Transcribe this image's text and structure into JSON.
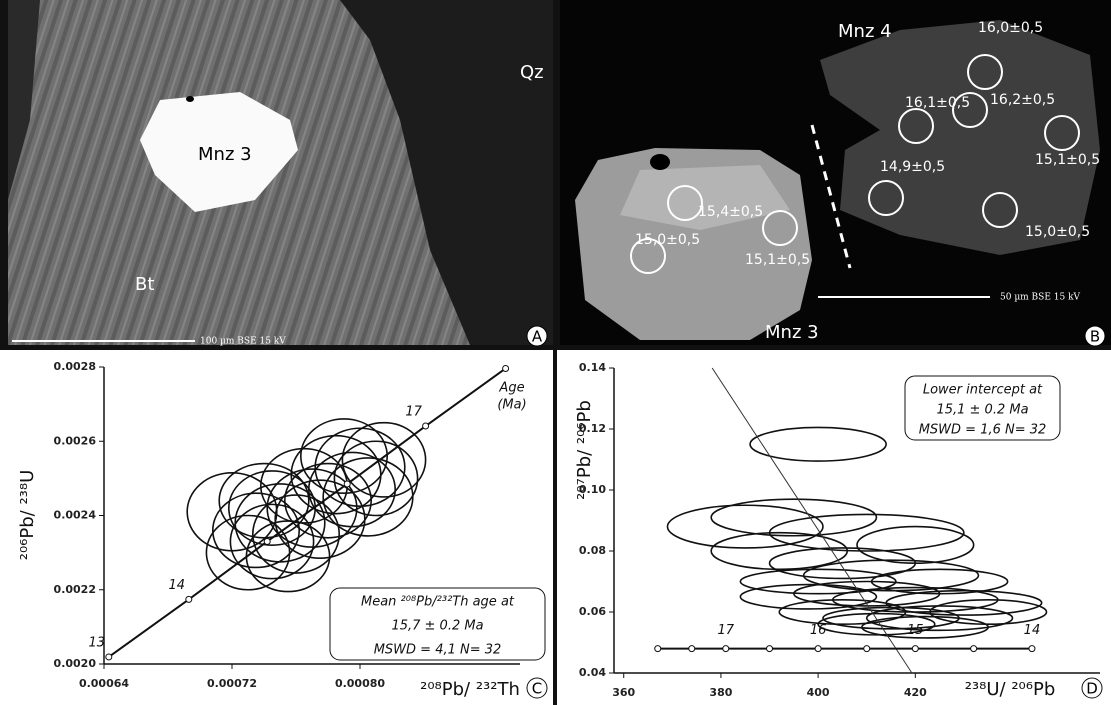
{
  "panels": [
    {
      "label": "A",
      "texts": [
        "Qz",
        "Mnz 3",
        "Bt"
      ],
      "scale_bar": "100 µm BSE 15 kV"
    },
    {
      "label": "B",
      "texts": [
        "Mnz 4",
        "Mnz 3"
      ],
      "scale_bar": "50 µm BSE 15 kV",
      "spots": [
        "16,0±0,5",
        "16,2±0,5",
        "16,1±0,5",
        "15,1±0,5",
        "14,9±0,5",
        "15,0±0,5",
        "15,4±0,5",
        "15,1±0,5",
        "15,0±0,5"
      ]
    }
  ],
  "chart_data": [
    {
      "type": "concordia",
      "panel_label": "C",
      "x_label": "²⁰⁸Pb/ ²³²Th",
      "y_label": "²⁰⁶Pb/ ²³⁸U",
      "xlim": [
        0.00064,
        0.0009
      ],
      "ylim": [
        0.002,
        0.0028
      ],
      "xticks": [
        0.00064,
        0.00072,
        {
          "value": 0.0008,
          "label": "0.00080"
        }
      ],
      "yticks": [
        {
          "value": 0.002,
          "label": "0.0020"
        },
        0.0022,
        0.0024,
        0.0026,
        0.0028
      ],
      "concordia": {
        "title": [
          "Age",
          "(Ma)"
        ],
        "ages": [
          "13",
          "14",
          null,
          null,
          "17",
          null
        ],
        "x": [
          0.000643,
          0.000693,
          0.000742,
          0.000792,
          0.000841,
          0.000891
        ],
        "y": [
          0.002019,
          0.002174,
          0.00233,
          0.002485,
          0.002641,
          0.002796
        ]
      },
      "ellipses": {
        "x": [
          0.00072,
          0.000735,
          0.000745,
          0.00075,
          0.00073,
          0.00076,
          0.00074,
          0.000755,
          0.00077,
          0.000765,
          0.000785,
          0.000795,
          0.0008,
          0.00081,
          0.00079,
          0.000805,
          0.00078,
          0.000815,
          0.000775,
          0.000745
        ],
        "y": [
          0.00241,
          0.00236,
          0.00233,
          0.00238,
          0.0023,
          0.00235,
          0.00244,
          0.00229,
          0.00242,
          0.00248,
          0.00251,
          0.00247,
          0.00253,
          0.0025,
          0.00256,
          0.00245,
          0.00244,
          0.00255,
          0.00239,
          0.00242
        ],
        "x_err": [
          2.8e-05,
          2.7e-05,
          2.6e-05,
          2.8e-05,
          2.6e-05,
          2.7e-05,
          2.8e-05,
          2.6e-05,
          2.8e-05,
          2.7e-05,
          2.8e-05,
          2.7e-05,
          2.8e-05,
          2.6e-05,
          2.7e-05,
          2.8e-05,
          2.7e-05,
          2.6e-05,
          2.8e-05,
          2.7e-05
        ],
        "y_err": [
          0.000105,
          0.0001,
          0.0001,
          0.000105,
          0.0001,
          0.000105,
          0.0001,
          9.5e-05,
          0.000105,
          0.0001,
          0.000105,
          0.0001,
          0.000105,
          0.0001,
          0.0001,
          0.000105,
          0.0001,
          0.0001,
          0.000105,
          0.0001
        ]
      },
      "annotation": [
        "Mean ²⁰⁸Pb/²³²Th age at",
        "15,7 ± 0.2 Ma",
        "MSWD = 4,1  N= 32"
      ]
    },
    {
      "type": "concordia",
      "panel_label": "D",
      "x_label": "²³⁸U/ ²⁰⁶Pb",
      "y_label": "²⁰⁷Pb/ ²⁰⁶Pb",
      "xlim": [
        358,
        458
      ],
      "ylim": [
        0.04,
        0.14
      ],
      "xticks": [
        360,
        380,
        400,
        420
      ],
      "yticks": [
        0.04,
        0.06,
        0.08,
        {
          "value": 0.1,
          "label": "0.10"
        },
        0.12,
        0.14
      ],
      "concordia": {
        "ages": [
          null,
          null,
          "17",
          null,
          "16",
          null,
          "15",
          null,
          "14"
        ],
        "x": [
          367,
          374,
          381,
          390,
          400,
          410,
          420,
          432,
          444
        ],
        "y": [
          0.048,
          0.048,
          0.048,
          0.048,
          0.048,
          0.048,
          0.048,
          0.048,
          0.048
        ]
      },
      "discordia": {
        "x": [
          378.2,
          419.3
        ],
        "y": [
          0.14,
          0.04
        ]
      },
      "ellipses": {
        "x": [
          400,
          385,
          395,
          410,
          392,
          420,
          405,
          415,
          400,
          425,
          410,
          398,
          420,
          430,
          405,
          415,
          425,
          435,
          412,
          422
        ],
        "y": [
          0.115,
          0.088,
          0.091,
          0.086,
          0.08,
          0.082,
          0.076,
          0.072,
          0.07,
          0.07,
          0.066,
          0.065,
          0.064,
          0.063,
          0.06,
          0.058,
          0.058,
          0.06,
          0.056,
          0.055
        ],
        "x_err": [
          14,
          16,
          17,
          20,
          14,
          12,
          15,
          18,
          16,
          14,
          15,
          14,
          17,
          16,
          13,
          14,
          15,
          12,
          12,
          13
        ],
        "y_err": [
          0.0055,
          0.007,
          0.006,
          0.006,
          0.006,
          0.006,
          0.005,
          0.005,
          0.004,
          0.004,
          0.004,
          0.004,
          0.004,
          0.004,
          0.004,
          0.0035,
          0.004,
          0.004,
          0.0035,
          0.0035
        ]
      },
      "annotation": [
        "Lower intercept at",
        "15,1 ± 0.2 Ma",
        "MSWD = 1,6  N= 32"
      ]
    }
  ]
}
